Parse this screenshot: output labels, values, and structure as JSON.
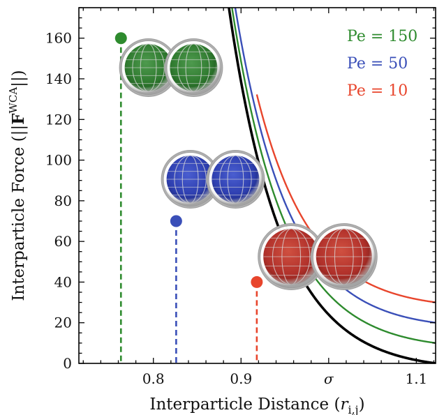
{
  "chart_data": {
    "type": "line",
    "xlabel": "Interparticle Distance (r_{i,j})",
    "ylabel": "Interparticle Force (||F^{WCA}||)",
    "xlim": [
      0.715,
      1.122
    ],
    "ylim": [
      0,
      175
    ],
    "x_ticks": [
      {
        "value": 0.8,
        "label": "0.8"
      },
      {
        "value": 0.9,
        "label": "0.9"
      },
      {
        "value": 1.0,
        "label": "σ"
      },
      {
        "value": 1.1,
        "label": "1.1"
      }
    ],
    "y_ticks": [
      0,
      20,
      40,
      60,
      80,
      100,
      120,
      140,
      160
    ],
    "grid": false,
    "legend_position": "top-right",
    "series": [
      {
        "name": "WCA",
        "color": "#000000",
        "offset": 0,
        "cutoff_x": null
      },
      {
        "name": "Pe = 150",
        "color": "#2e8b2e",
        "offset": 10,
        "cutoff_x": 0.763,
        "cutoff_y": 160
      },
      {
        "name": "Pe = 50",
        "color": "#3a4fb8",
        "offset": 20,
        "cutoff_x": 0.826,
        "cutoff_y": 70
      },
      {
        "name": "Pe = 10",
        "color": "#e8452c",
        "offset": 30,
        "cutoff_x": 0.918,
        "cutoff_y": 40
      }
    ],
    "legend": [
      {
        "label": "Pe = 150",
        "color": "#2e8b2e"
      },
      {
        "label": "Pe = 50",
        "color": "#3a4fb8"
      },
      {
        "label": "Pe = 10",
        "color": "#e8452c"
      }
    ],
    "annotations": [
      {
        "type": "dimer-image",
        "color": "#2e8b2e",
        "near_series": "Pe = 150"
      },
      {
        "type": "dimer-image",
        "color": "#3a4fb8",
        "near_series": "Pe = 50"
      },
      {
        "type": "dimer-image",
        "color": "#d03a2a",
        "near_series": "Pe = 10"
      }
    ]
  }
}
